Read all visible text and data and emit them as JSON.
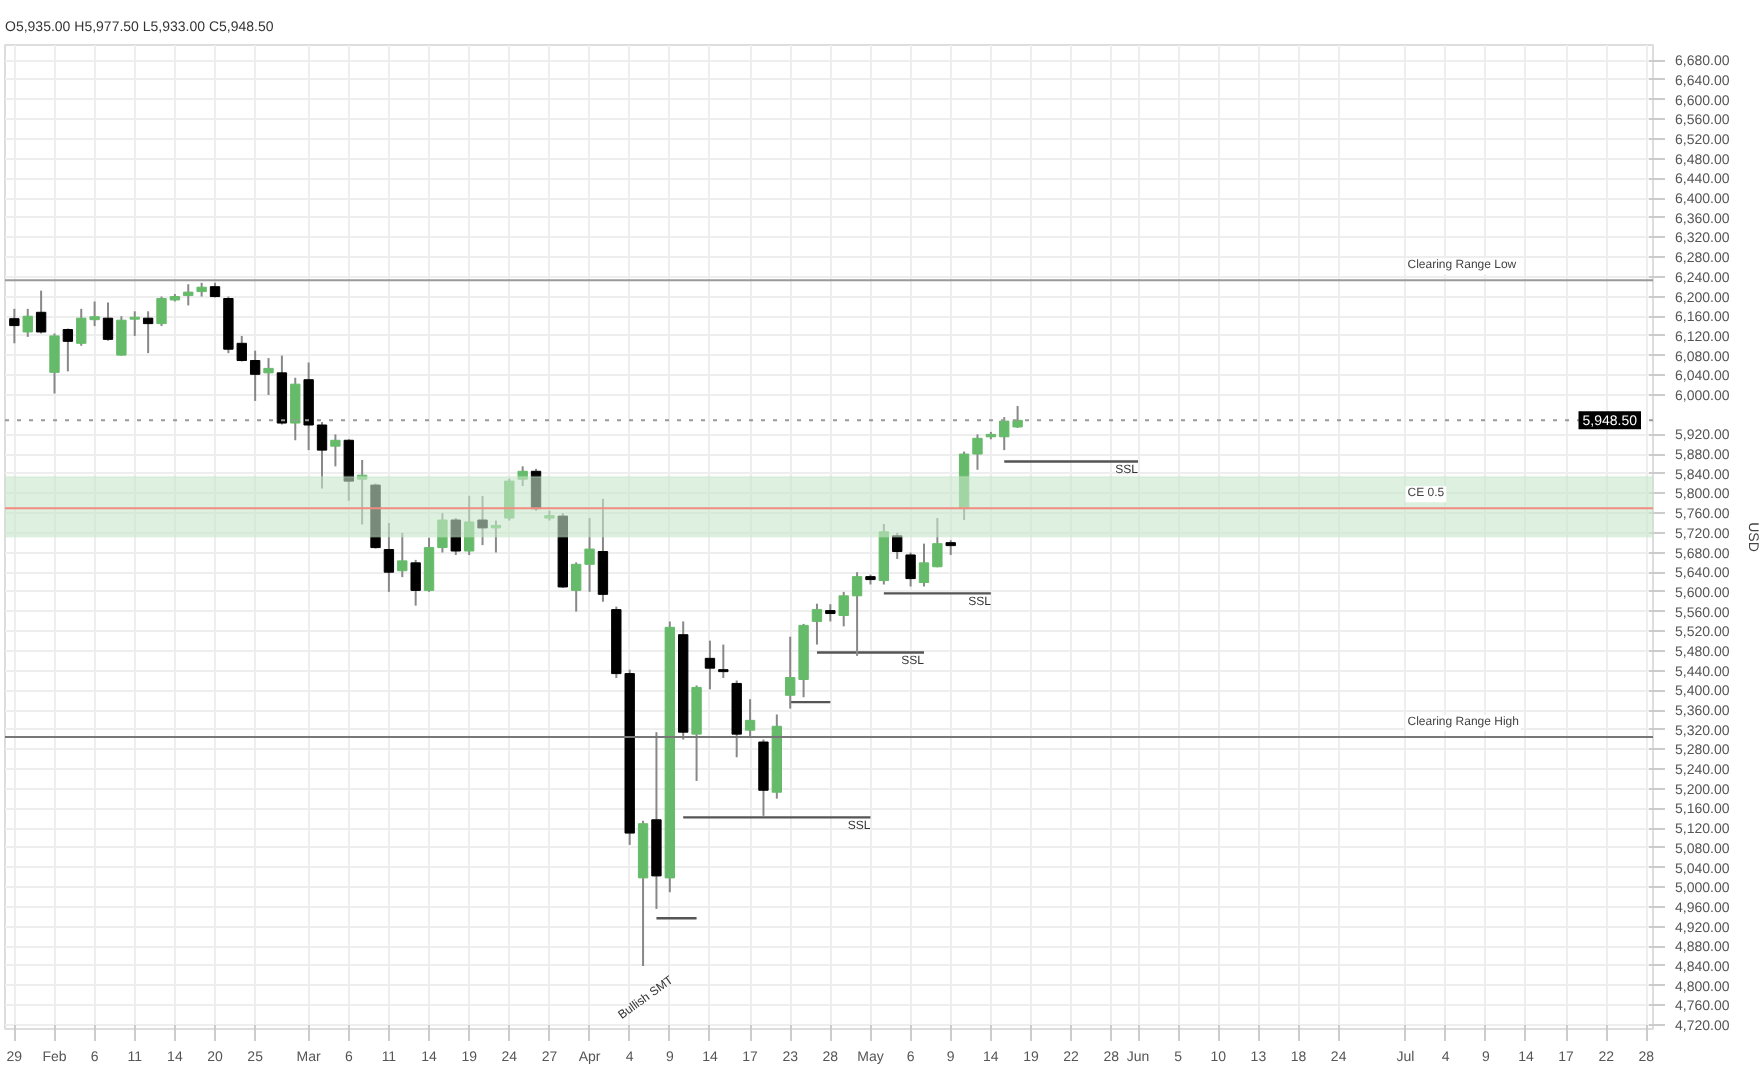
{
  "chart_data": {
    "type": "candlestick",
    "ylabel": "USD",
    "annotations": [
      "O5,935.00 H5,977.50 L5,933.00 C5,948.50",
      "Bullish SMT"
    ],
    "categories": [
      "29",
      null,
      null,
      "Feb",
      null,
      null,
      "6",
      null,
      null,
      "11",
      null,
      null,
      "14",
      null,
      null,
      "20",
      null,
      null,
      "25",
      null,
      null,
      null,
      "Mar",
      null,
      null,
      "6",
      null,
      null,
      "11",
      null,
      null,
      "14",
      null,
      null,
      "19",
      null,
      null,
      "24",
      null,
      null,
      "27",
      null,
      null,
      "Apr",
      null,
      null,
      "4",
      null,
      null,
      "9",
      null,
      null,
      "14",
      null,
      null,
      "17",
      null,
      null,
      "23",
      null,
      null,
      "28",
      null,
      null,
      "May",
      null,
      null,
      "6",
      null,
      null,
      "9",
      null,
      null,
      "14",
      null,
      null,
      "19",
      null,
      null,
      "22",
      null,
      null,
      "28",
      null,
      "Jun",
      null,
      null,
      "5",
      null,
      null,
      "10",
      null,
      null,
      "13",
      null,
      null,
      "18",
      null,
      null,
      "24",
      null,
      null,
      null,
      null,
      "Jul",
      null,
      null,
      "4",
      null,
      null,
      "9",
      null,
      null,
      "14",
      null,
      null,
      "17",
      null,
      null,
      "22",
      null,
      null,
      "28"
    ],
    "ohlc": [
      [
        6155,
        6175,
        6105,
        6141
      ],
      [
        6128,
        6175,
        6118,
        6160
      ],
      [
        6168,
        6212,
        6125,
        6128
      ],
      [
        6046,
        6125,
        6003,
        6120
      ],
      [
        6133,
        6135,
        6048,
        6109
      ],
      [
        6105,
        6175,
        6100,
        6156
      ],
      [
        6153,
        6190,
        6140,
        6159
      ],
      [
        6156,
        6188,
        6110,
        6113
      ],
      [
        6081,
        6160,
        6080,
        6152
      ],
      [
        6154,
        6170,
        6120,
        6158
      ],
      [
        6156,
        6170,
        6085,
        6145
      ],
      [
        6145,
        6200,
        6140,
        6196
      ],
      [
        6193,
        6205,
        6190,
        6200
      ],
      [
        6202,
        6225,
        6182,
        6209
      ],
      [
        6210,
        6228,
        6200,
        6219
      ],
      [
        6220,
        6228,
        6198,
        6200
      ],
      [
        6196,
        6200,
        6085,
        6093
      ],
      [
        6105,
        6120,
        6068,
        6070
      ],
      [
        6070,
        6090,
        5988,
        6042
      ],
      [
        6045,
        6075,
        6000,
        6054
      ],
      [
        6045,
        6080,
        5940,
        5943
      ],
      [
        5943,
        6035,
        5908,
        6022
      ],
      [
        6031,
        6066,
        5888,
        5939
      ],
      [
        5939,
        5945,
        5810,
        5888
      ],
      [
        5896,
        5920,
        5855,
        5908
      ],
      [
        5908,
        5910,
        5785,
        5825
      ],
      [
        5829,
        5868,
        5737,
        5837
      ],
      [
        5817,
        5820,
        5688,
        5690
      ],
      [
        5686,
        5740,
        5600,
        5640
      ],
      [
        5643,
        5720,
        5630,
        5663
      ],
      [
        5659,
        5665,
        5572,
        5603
      ],
      [
        5603,
        5710,
        5600,
        5690
      ],
      [
        5690,
        5760,
        5680,
        5746
      ],
      [
        5746,
        5750,
        5675,
        5683
      ],
      [
        5683,
        5795,
        5675,
        5742
      ],
      [
        5746,
        5795,
        5695,
        5730
      ],
      [
        5730,
        5745,
        5680,
        5735
      ],
      [
        5750,
        5830,
        5745,
        5825
      ],
      [
        5829,
        5855,
        5815,
        5845
      ],
      [
        5845,
        5850,
        5765,
        5769
      ],
      [
        5750,
        5765,
        5745,
        5755
      ],
      [
        5754,
        5760,
        5608,
        5610
      ],
      [
        5603,
        5660,
        5560,
        5656
      ],
      [
        5656,
        5750,
        5600,
        5687
      ],
      [
        5682,
        5789,
        5580,
        5595
      ],
      [
        5564,
        5570,
        5425,
        5434
      ],
      [
        5434,
        5442,
        5086,
        5110
      ],
      [
        5019,
        5135,
        4840,
        5129
      ],
      [
        5137,
        5315,
        4956,
        5023
      ],
      [
        5019,
        5540,
        4990,
        5528
      ],
      [
        5513,
        5540,
        5300,
        5315
      ],
      [
        5311,
        5410,
        5216,
        5406
      ],
      [
        5465,
        5501,
        5402,
        5445
      ],
      [
        5442,
        5493,
        5425,
        5438
      ],
      [
        5414,
        5420,
        5264,
        5311
      ],
      [
        5319,
        5382,
        5303,
        5339
      ],
      [
        5295,
        5300,
        5145,
        5197
      ],
      [
        5193,
        5351,
        5180,
        5327
      ],
      [
        5390,
        5509,
        5363,
        5426
      ],
      [
        5422,
        5535,
        5386,
        5532
      ],
      [
        5540,
        5576,
        5493,
        5564
      ],
      [
        5562,
        5575,
        5540,
        5556
      ],
      [
        5552,
        5600,
        5530,
        5592
      ],
      [
        5592,
        5640,
        5470,
        5631
      ],
      [
        5631,
        5635,
        5615,
        5625
      ],
      [
        5623,
        5738,
        5615,
        5722
      ],
      [
        5714,
        5720,
        5667,
        5682
      ],
      [
        5675,
        5680,
        5611,
        5627
      ],
      [
        5619,
        5698,
        5611,
        5659
      ],
      [
        5651,
        5750,
        5650,
        5698
      ],
      [
        5700,
        5705,
        5675,
        5694
      ],
      [
        5769,
        5885,
        5746,
        5880
      ],
      [
        5880,
        5920,
        5848,
        5912
      ],
      [
        5915,
        5925,
        5910,
        5920
      ],
      [
        5915,
        5955,
        5888,
        5947
      ],
      [
        5935,
        5977.5,
        5933,
        5948.5
      ],
      null,
      null,
      null,
      null,
      null,
      null,
      null,
      null,
      null,
      null,
      null,
      null,
      null,
      null,
      null,
      null,
      null,
      null,
      null,
      null,
      null,
      null,
      null,
      null,
      null,
      null,
      null,
      null,
      null,
      null,
      null,
      null,
      null,
      null,
      null,
      null,
      null,
      null,
      null,
      null,
      null,
      null,
      null,
      null,
      null,
      null,
      null
    ],
    "colors": [
      "#000000",
      "#66bb6a",
      "#000000",
      "#66bb6a",
      "#000000",
      "#66bb6a",
      "#66bb6a",
      "#000000",
      "#66bb6a",
      "#66bb6a",
      "#000000",
      "#66bb6a",
      "#66bb6a",
      "#66bb6a",
      "#66bb6a",
      "#000000",
      "#000000",
      "#000000",
      "#000000",
      "#66bb6a",
      "#000000",
      "#66bb6a",
      "#000000",
      "#000000",
      "#66bb6a",
      "#000000",
      "#66bb6a",
      "#000000",
      "#000000",
      "#66bb6a",
      "#000000",
      "#66bb6a",
      "#66bb6a",
      "#000000",
      "#66bb6a",
      "#000000",
      "#66bb6a",
      "#66bb6a",
      "#66bb6a",
      "#000000",
      "#66bb6a",
      "#000000",
      "#66bb6a",
      "#66bb6a",
      "#000000",
      "#000000",
      "#000000",
      "#66bb6a",
      "#000000",
      "#66bb6a",
      "#000000",
      "#66bb6a",
      "#000000",
      "#000000",
      "#000000",
      "#66bb6a",
      "#000000",
      "#66bb6a",
      "#66bb6a",
      "#66bb6a",
      "#66bb6a",
      "#000000",
      "#66bb6a",
      "#66bb6a",
      "#000000",
      "#66bb6a",
      "#000000",
      "#000000",
      "#66bb6a",
      "#66bb6a",
      "#000000",
      "#66bb6a",
      "#66bb6a",
      "#66bb6a",
      "#66bb6a",
      "#66bb6a",
      null,
      null,
      null,
      null,
      null,
      null,
      null,
      null,
      null,
      null,
      null,
      null,
      null,
      null,
      null,
      null,
      null,
      null,
      null,
      null,
      null,
      null,
      null,
      null,
      null,
      null,
      null,
      null,
      null,
      null,
      null,
      null,
      null,
      null,
      null,
      null,
      null,
      null,
      null,
      null,
      null,
      null,
      null,
      null,
      null,
      null,
      null
    ],
    "series": [
      {
        "type": "line",
        "name": "SSL",
        "color": "#555555",
        "values": [
          null,
          null,
          null,
          null,
          null,
          null,
          null,
          null,
          null,
          null,
          null,
          null,
          null,
          null,
          null,
          null,
          null,
          null,
          null,
          null,
          null,
          null,
          null,
          null,
          null,
          null,
          null,
          null,
          null,
          null,
          null,
          null,
          null,
          null,
          null,
          null,
          null,
          null,
          null,
          null,
          null,
          null,
          null,
          null,
          null,
          null,
          null,
          null,
          null,
          null,
          null,
          null,
          null,
          null,
          null,
          null,
          null,
          null,
          null,
          null,
          null,
          null,
          null,
          null,
          null,
          null,
          null,
          null,
          null,
          null,
          null,
          null,
          null,
          null,
          5865,
          5865,
          5865,
          5865,
          5865,
          5865,
          5865,
          5865,
          5865,
          5865,
          5865,
          null,
          null,
          null,
          null,
          null,
          null,
          null,
          null,
          null,
          null,
          null,
          null,
          null,
          null,
          null,
          null,
          null,
          null,
          null,
          null,
          null,
          null,
          null,
          null,
          null,
          null,
          null,
          null,
          null,
          null,
          null,
          null,
          null,
          null,
          null,
          null,
          null,
          null
        ]
      },
      {
        "type": "line",
        "name": "SSL",
        "color": "#555555",
        "values": [
          null,
          null,
          null,
          null,
          null,
          null,
          null,
          null,
          null,
          null,
          null,
          null,
          null,
          null,
          null,
          null,
          null,
          null,
          null,
          null,
          null,
          null,
          null,
          null,
          null,
          null,
          null,
          null,
          null,
          null,
          null,
          null,
          null,
          null,
          null,
          null,
          null,
          null,
          null,
          null,
          null,
          null,
          null,
          null,
          null,
          null,
          null,
          null,
          null,
          null,
          null,
          null,
          null,
          null,
          null,
          null,
          null,
          null,
          null,
          null,
          null,
          null,
          null,
          null,
          null,
          5597,
          5597,
          5597,
          5597,
          5597,
          5597,
          5597,
          5597,
          5597,
          null,
          null,
          null,
          null,
          null,
          null,
          null,
          null,
          null,
          null,
          null,
          null,
          null,
          null,
          null,
          null,
          null,
          null,
          null,
          null,
          null,
          null,
          null,
          null,
          null,
          null,
          null,
          null,
          null,
          null,
          null,
          null,
          null,
          null,
          null,
          null,
          null,
          null,
          null,
          null,
          null,
          null,
          null,
          null,
          null,
          null,
          null,
          null,
          null
        ]
      },
      {
        "type": "line",
        "name": "SSL",
        "color": "#555555",
        "values": [
          null,
          null,
          null,
          null,
          null,
          null,
          null,
          null,
          null,
          null,
          null,
          null,
          null,
          null,
          null,
          null,
          null,
          null,
          null,
          null,
          null,
          null,
          null,
          null,
          null,
          null,
          null,
          null,
          null,
          null,
          null,
          null,
          null,
          null,
          null,
          null,
          null,
          null,
          null,
          null,
          null,
          null,
          null,
          null,
          null,
          null,
          null,
          null,
          null,
          null,
          null,
          null,
          null,
          null,
          null,
          null,
          null,
          null,
          null,
          null,
          5477,
          5477,
          5477,
          5477,
          5477,
          5477,
          5477,
          5477,
          5477,
          null,
          null,
          null,
          null,
          null,
          null,
          null,
          null,
          null,
          null,
          null,
          null,
          null,
          null,
          null,
          null,
          null,
          null,
          null,
          null,
          null,
          null,
          null,
          null,
          null,
          null,
          null,
          null,
          null,
          null,
          null,
          null,
          null,
          null,
          null,
          null,
          null,
          null,
          null,
          null,
          null,
          null,
          null,
          null,
          null,
          null,
          null,
          null,
          null,
          null,
          null,
          null,
          null,
          null
        ]
      },
      {
        "type": "line",
        "color": "#555555",
        "values": [
          null,
          null,
          null,
          null,
          null,
          null,
          null,
          null,
          null,
          null,
          null,
          null,
          null,
          null,
          null,
          null,
          null,
          null,
          null,
          null,
          null,
          null,
          null,
          null,
          null,
          null,
          null,
          null,
          null,
          null,
          null,
          null,
          null,
          null,
          null,
          null,
          null,
          null,
          null,
          null,
          null,
          null,
          null,
          null,
          null,
          null,
          null,
          null,
          null,
          null,
          null,
          null,
          null,
          null,
          null,
          null,
          null,
          null,
          5376,
          5376,
          5376,
          5376,
          null,
          null,
          null,
          null,
          null,
          null,
          null,
          null,
          null,
          null,
          null,
          null,
          null,
          null,
          null,
          null,
          null,
          null,
          null,
          null,
          null,
          null,
          null,
          null,
          null,
          null,
          null,
          null,
          null,
          null,
          null,
          null,
          null,
          null,
          null,
          null,
          null,
          null,
          null,
          null,
          null,
          null,
          null,
          null,
          null,
          null,
          null,
          null,
          null,
          null,
          null,
          null,
          null,
          null,
          null,
          null,
          null,
          null,
          null,
          null,
          null
        ]
      },
      {
        "type": "line",
        "name": "SSL",
        "color": "#555555",
        "values": [
          null,
          null,
          null,
          null,
          null,
          null,
          null,
          null,
          null,
          null,
          null,
          null,
          null,
          null,
          null,
          null,
          null,
          null,
          null,
          null,
          null,
          null,
          null,
          null,
          null,
          null,
          null,
          null,
          null,
          null,
          null,
          null,
          null,
          null,
          null,
          null,
          null,
          null,
          null,
          null,
          null,
          null,
          null,
          null,
          null,
          null,
          null,
          null,
          null,
          null,
          5142,
          5142,
          5142,
          5142,
          5142,
          5142,
          5142,
          5142,
          5142,
          5142,
          5142,
          5142,
          5142,
          5142,
          5142,
          null,
          null,
          null,
          null,
          null,
          null,
          null,
          null,
          null,
          null,
          null,
          null,
          null,
          null,
          null,
          null,
          null,
          null,
          null,
          null,
          null,
          null,
          null,
          null,
          null,
          null,
          null,
          null,
          null,
          null,
          null,
          null,
          null,
          null,
          null,
          null,
          null,
          null,
          null,
          null,
          null,
          null,
          null,
          null,
          null,
          null,
          null,
          null,
          null,
          null,
          null,
          null,
          null,
          null,
          null,
          null,
          null,
          null
        ]
      },
      {
        "type": "line",
        "color": "#555555",
        "values": [
          null,
          null,
          null,
          null,
          null,
          null,
          null,
          null,
          null,
          null,
          null,
          null,
          null,
          null,
          null,
          null,
          null,
          null,
          null,
          null,
          null,
          null,
          null,
          null,
          null,
          null,
          null,
          null,
          null,
          null,
          null,
          null,
          null,
          null,
          null,
          null,
          null,
          null,
          null,
          null,
          null,
          null,
          null,
          null,
          null,
          null,
          null,
          null,
          4937,
          4937,
          4937,
          4937,
          null,
          null,
          null,
          null,
          null,
          null,
          null,
          null,
          null,
          null,
          null,
          null,
          null,
          null,
          null,
          null,
          null,
          null,
          null,
          null,
          null,
          null,
          null,
          null,
          null,
          null,
          null,
          null,
          null,
          null,
          null,
          null,
          null,
          null,
          null,
          null,
          null,
          null,
          null,
          null,
          null,
          null,
          null,
          null,
          null,
          null,
          null,
          null,
          null,
          null,
          null,
          null,
          null,
          null,
          null,
          null,
          null,
          null,
          null,
          null,
          null,
          null,
          null,
          null,
          null,
          null,
          null,
          null,
          null,
          null,
          null
        ]
      }
    ],
    "ref_lines": [
      {
        "axis": "y",
        "value": 6233,
        "label": "Clearing Range Low",
        "color": "#999999"
      },
      {
        "axis": "y",
        "value": 5305,
        "label": "Clearing Range High",
        "color": "#777777"
      },
      {
        "axis": "y",
        "value": 5770,
        "label": "CE 0.5",
        "color": "#f28b82"
      },
      {
        "axis": "y",
        "value": 5948.5,
        "label": "5,948.50",
        "color": "#999999",
        "line_style": "dotted"
      }
    ],
    "bands": [
      {
        "axis": "y",
        "from": 5712,
        "to": 5834,
        "color": "#c8e6c9"
      }
    ],
    "ylim": [
      4712,
      6711
    ],
    "yticks": [
      {
        "value": 4720,
        "label": "4,720.00"
      },
      {
        "value": 4760,
        "label": "4,760.00"
      },
      {
        "value": 4800,
        "label": "4,800.00"
      },
      {
        "value": 4840,
        "label": "4,840.00"
      },
      {
        "value": 4880,
        "label": "4,880.00"
      },
      {
        "value": 4920,
        "label": "4,920.00"
      },
      {
        "value": 4960,
        "label": "4,960.00"
      },
      {
        "value": 5000,
        "label": "5,000.00"
      },
      {
        "value": 5040,
        "label": "5,040.00"
      },
      {
        "value": 5080,
        "label": "5,080.00"
      },
      {
        "value": 5120,
        "label": "5,120.00"
      },
      {
        "value": 5160,
        "label": "5,160.00"
      },
      {
        "value": 5200,
        "label": "5,200.00"
      },
      {
        "value": 5240,
        "label": "5,240.00"
      },
      {
        "value": 5280,
        "label": "5,280.00"
      },
      {
        "value": 5320,
        "label": "5,320.00"
      },
      {
        "value": 5360,
        "label": "5,360.00"
      },
      {
        "value": 5400,
        "label": "5,400.00"
      },
      {
        "value": 5440,
        "label": "5,440.00"
      },
      {
        "value": 5480,
        "label": "5,480.00"
      },
      {
        "value": 5520,
        "label": "5,520.00"
      },
      {
        "value": 5560,
        "label": "5,560.00"
      },
      {
        "value": 5600,
        "label": "5,600.00"
      },
      {
        "value": 5640,
        "label": "5,640.00"
      },
      {
        "value": 5680,
        "label": "5,680.00"
      },
      {
        "value": 5720,
        "label": "5,720.00"
      },
      {
        "value": 5760,
        "label": "5,760.00"
      },
      {
        "value": 5800,
        "label": "5,800.00"
      },
      {
        "value": 5840,
        "label": "5,840.00"
      },
      {
        "value": 5880,
        "label": "5,880.00"
      },
      {
        "value": 5920,
        "label": "5,920.00"
      },
      {
        "value": 6000,
        "label": "6,000.00"
      },
      {
        "value": 6040,
        "label": "6,040.00"
      },
      {
        "value": 6080,
        "label": "6,080.00"
      },
      {
        "value": 6120,
        "label": "6,120.00"
      },
      {
        "value": 6160,
        "label": "6,160.00"
      },
      {
        "value": 6200,
        "label": "6,200.00"
      },
      {
        "value": 6240,
        "label": "6,240.00"
      },
      {
        "value": 6280,
        "label": "6,280.00"
      },
      {
        "value": 6320,
        "label": "6,320.00"
      },
      {
        "value": 6360,
        "label": "6,360.00"
      },
      {
        "value": 6400,
        "label": "6,400.00"
      },
      {
        "value": 6440,
        "label": "6,440.00"
      },
      {
        "value": 6480,
        "label": "6,480.00"
      },
      {
        "value": 6520,
        "label": "6,520.00"
      },
      {
        "value": 6560,
        "label": "6,560.00"
      },
      {
        "value": 6600,
        "label": "6,600.00"
      },
      {
        "value": 6640,
        "label": "6,640.00"
      },
      {
        "value": 6680,
        "label": "6,680.00"
      }
    ],
    "grid": true
  }
}
